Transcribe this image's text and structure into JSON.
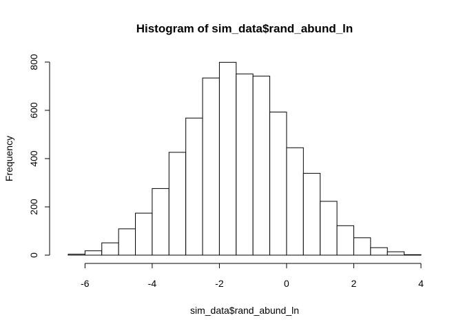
{
  "chart_data": {
    "type": "bar",
    "title": "Histogram of sim_data$rand_abund_ln",
    "xlabel": "sim_data$rand_abund_ln",
    "ylabel": "Frequency",
    "xlim": [
      -6.5,
      4
    ],
    "ylim": [
      0,
      800
    ],
    "x_ticks": [
      -6,
      -4,
      -2,
      0,
      2,
      4
    ],
    "y_ticks": [
      0,
      200,
      400,
      600,
      800
    ],
    "bin_edges": [
      -6.5,
      -6,
      -5.5,
      -5,
      -4.5,
      -4,
      -3.5,
      -3,
      -2.5,
      -2,
      -1.5,
      -1,
      -0.5,
      0,
      0.5,
      1,
      1.5,
      2,
      2.5,
      3,
      3.5,
      4
    ],
    "values": [
      4,
      18,
      51,
      109,
      174,
      276,
      426,
      568,
      734,
      799,
      751,
      742,
      593,
      445,
      339,
      223,
      122,
      72,
      31,
      14,
      2
    ],
    "grid": false,
    "bar_fill": "#ffffff",
    "bar_stroke": "#000000"
  }
}
